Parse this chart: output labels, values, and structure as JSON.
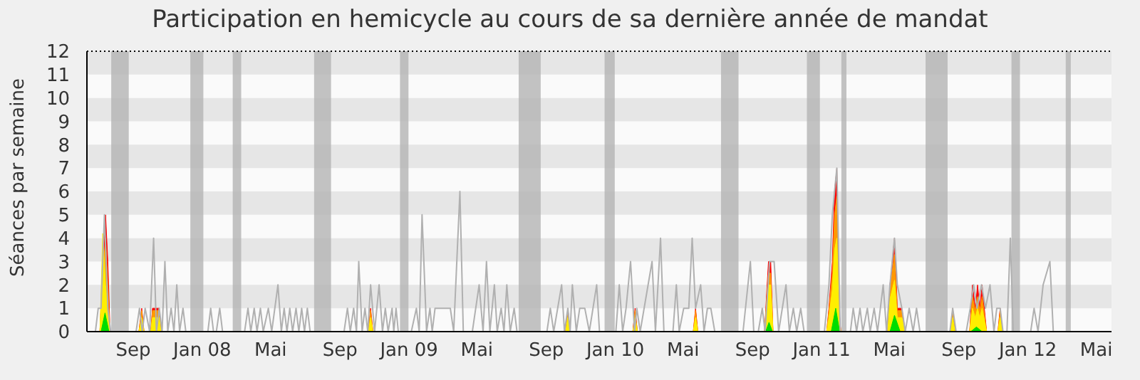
{
  "chart_data": {
    "type": "area",
    "title": "Participation en hemicycle au cours de sa dernière année de mandat",
    "ylabel": "Séances par semaine",
    "xlim": [
      "2007-06-11",
      "2012-05-28"
    ],
    "xticks": [
      {
        "value": "2007-09-01",
        "label": "Sep"
      },
      {
        "value": "2008-01-01",
        "label": "Jan 08"
      },
      {
        "value": "2008-05-01",
        "label": "Mai"
      },
      {
        "value": "2008-09-01",
        "label": "Sep"
      },
      {
        "value": "2009-01-01",
        "label": "Jan 09"
      },
      {
        "value": "2009-05-01",
        "label": "Mai"
      },
      {
        "value": "2009-09-01",
        "label": "Sep"
      },
      {
        "value": "2010-01-01",
        "label": "Jan 10"
      },
      {
        "value": "2010-05-01",
        "label": "Mai"
      },
      {
        "value": "2010-09-01",
        "label": "Sep"
      },
      {
        "value": "2011-01-01",
        "label": "Jan 11"
      },
      {
        "value": "2011-05-01",
        "label": "Mai"
      },
      {
        "value": "2011-09-01",
        "label": "Sep"
      },
      {
        "value": "2012-01-01",
        "label": "Jan 12"
      },
      {
        "value": "2012-05-01",
        "label": "Mai"
      }
    ],
    "ylim": [
      0,
      12
    ],
    "yticks": [
      0,
      1,
      2,
      3,
      4,
      5,
      6,
      7,
      8,
      9,
      10,
      11,
      12
    ],
    "legend": false,
    "bands": [
      {
        "axis": "y",
        "from": 1,
        "to": 2,
        "color": "#e6e6e6"
      },
      {
        "axis": "y",
        "from": 3,
        "to": 4,
        "color": "#e6e6e6"
      },
      {
        "axis": "y",
        "from": 5,
        "to": 6,
        "color": "#e6e6e6"
      },
      {
        "axis": "y",
        "from": 7,
        "to": 8,
        "color": "#e6e6e6"
      },
      {
        "axis": "y",
        "from": 9,
        "to": 10,
        "color": "#e6e6e6"
      },
      {
        "axis": "y",
        "from": 11,
        "to": 12,
        "color": "#e6e6e6"
      },
      {
        "axis": "x",
        "from": "2007-07-24",
        "to": "2007-08-24",
        "color": "#b4b4b4"
      },
      {
        "axis": "x",
        "from": "2007-12-11",
        "to": "2008-01-03",
        "color": "#b4b4b4"
      },
      {
        "axis": "x",
        "from": "2008-02-24",
        "to": "2008-03-10",
        "color": "#b4b4b4"
      },
      {
        "axis": "x",
        "from": "2008-07-17",
        "to": "2008-08-16",
        "color": "#b4b4b4"
      },
      {
        "axis": "x",
        "from": "2008-12-16",
        "to": "2008-12-31",
        "color": "#b4b4b4"
      },
      {
        "axis": "x",
        "from": "2009-07-14",
        "to": "2009-08-22",
        "color": "#b4b4b4"
      },
      {
        "axis": "x",
        "from": "2009-12-13",
        "to": "2009-12-31",
        "color": "#b4b4b4"
      },
      {
        "axis": "x",
        "from": "2010-07-07",
        "to": "2010-08-07",
        "color": "#b4b4b4"
      },
      {
        "axis": "x",
        "from": "2010-12-06",
        "to": "2010-12-29",
        "color": "#b4b4b4"
      },
      {
        "axis": "x",
        "from": "2011-02-05",
        "to": "2011-02-14",
        "color": "#b4b4b4"
      },
      {
        "axis": "x",
        "from": "2011-07-04",
        "to": "2011-08-12",
        "color": "#b4b4b4"
      },
      {
        "axis": "x",
        "from": "2011-12-03",
        "to": "2011-12-18",
        "color": "#b4b4b4"
      },
      {
        "axis": "x",
        "from": "2012-03-08",
        "to": "2012-03-17",
        "color": "#b4b4b4"
      }
    ],
    "series": [
      {
        "type": "line",
        "color": "#b0b0b0",
        "x": [
          "2007-06-26",
          "2007-07-01",
          "2007-07-06",
          "2007-07-12",
          "2007-07-18",
          "2007-07-23",
          "2007-09-06",
          "2007-09-12",
          "2007-09-17",
          "2007-09-22",
          "2007-09-30",
          "2007-10-07",
          "2007-10-12",
          "2007-10-17",
          "2007-10-22",
          "2007-10-27",
          "2007-11-01",
          "2007-11-07",
          "2007-11-12",
          "2007-11-17",
          "2007-11-22",
          "2007-11-28",
          "2007-12-03",
          "2008-01-11",
          "2008-01-16",
          "2008-01-21",
          "2008-01-26",
          "2008-02-01",
          "2008-02-06",
          "2008-03-16",
          "2008-03-22",
          "2008-03-27",
          "2008-04-02",
          "2008-04-07",
          "2008-04-13",
          "2008-04-18",
          "2008-04-27",
          "2008-05-03",
          "2008-05-14",
          "2008-05-20",
          "2008-05-25",
          "2008-05-30",
          "2008-06-04",
          "2008-06-09",
          "2008-06-15",
          "2008-06-20",
          "2008-06-25",
          "2008-06-30",
          "2008-07-05",
          "2008-07-10",
          "2008-09-08",
          "2008-09-14",
          "2008-09-19",
          "2008-09-25",
          "2008-09-30",
          "2008-10-04",
          "2008-10-10",
          "2008-10-15",
          "2008-10-20",
          "2008-10-25",
          "2008-11-01",
          "2008-11-09",
          "2008-11-15",
          "2008-11-20",
          "2008-11-25",
          "2008-12-02",
          "2008-12-05",
          "2008-12-09",
          "2008-12-13",
          "2009-01-05",
          "2009-01-14",
          "2009-01-19",
          "2009-01-24",
          "2009-02-01",
          "2009-02-07",
          "2009-02-11",
          "2009-02-16",
          "2009-02-27",
          "2009-03-07",
          "2009-03-15",
          "2009-03-21",
          "2009-04-01",
          "2009-04-07",
          "2009-04-23",
          "2009-05-05",
          "2009-05-12",
          "2009-05-18",
          "2009-05-24",
          "2009-06-01",
          "2009-06-06",
          "2009-06-13",
          "2009-06-18",
          "2009-06-23",
          "2009-06-29",
          "2009-07-06",
          "2009-07-11",
          "2009-09-02",
          "2009-09-08",
          "2009-09-14",
          "2009-09-28",
          "2009-10-03",
          "2009-10-09",
          "2009-10-13",
          "2009-10-17",
          "2009-10-24",
          "2009-10-30",
          "2009-11-08",
          "2009-11-16",
          "2009-11-29",
          "2009-12-04",
          "2010-01-02",
          "2010-01-08",
          "2010-01-14",
          "2010-01-20",
          "2010-01-28",
          "2010-02-04",
          "2010-02-08",
          "2010-02-14",
          "2010-03-07",
          "2010-03-13",
          "2010-03-22",
          "2010-03-28",
          "2010-04-13",
          "2010-04-19",
          "2010-04-24",
          "2010-05-02",
          "2010-05-11",
          "2010-05-17",
          "2010-05-23",
          "2010-06-01",
          "2010-06-07",
          "2010-06-13",
          "2010-06-19",
          "2010-06-26",
          "2010-08-15",
          "2010-08-28",
          "2010-09-03",
          "2010-09-11",
          "2010-09-18",
          "2010-09-23",
          "2010-10-01",
          "2010-10-09",
          "2010-10-17",
          "2010-10-30",
          "2010-11-05",
          "2010-11-12",
          "2010-11-18",
          "2010-11-25",
          "2010-12-01",
          "2011-01-06",
          "2011-01-14",
          "2011-01-20",
          "2011-01-28",
          "2011-02-03",
          "2011-02-21",
          "2011-02-26",
          "2011-03-04",
          "2011-03-10",
          "2011-03-15",
          "2011-03-23",
          "2011-03-28",
          "2011-04-04",
          "2011-04-10",
          "2011-04-20",
          "2011-04-26",
          "2011-05-02",
          "2011-05-10",
          "2011-05-15",
          "2011-05-23",
          "2011-05-29",
          "2011-06-05",
          "2011-06-12",
          "2011-06-18",
          "2011-06-24",
          "2011-08-16",
          "2011-08-21",
          "2011-08-27",
          "2011-09-14",
          "2011-09-21",
          "2011-09-27",
          "2011-10-03",
          "2011-10-11",
          "2011-10-18",
          "2011-10-26",
          "2011-11-02",
          "2011-11-07",
          "2011-11-13",
          "2011-11-18",
          "2011-11-25",
          "2011-12-01",
          "2011-12-06",
          "2012-01-06",
          "2012-01-12",
          "2012-01-19",
          "2012-01-28",
          "2012-02-09",
          "2012-02-15"
        ],
        "values": [
          0,
          1,
          1,
          5,
          1,
          0,
          0,
          1,
          0,
          1,
          0,
          4,
          0,
          1,
          0,
          3,
          0,
          1,
          0,
          2,
          0,
          1,
          0,
          0,
          1,
          0,
          0,
          1,
          0,
          0,
          1,
          0,
          1,
          0,
          1,
          0,
          1,
          0,
          2,
          0,
          1,
          0,
          1,
          0,
          1,
          0,
          1,
          0,
          1,
          0,
          0,
          1,
          0,
          1,
          0,
          3,
          0,
          1,
          0,
          2,
          0,
          2,
          0,
          1,
          0,
          1,
          0,
          1,
          0,
          0,
          1,
          0,
          5,
          0,
          1,
          0,
          1,
          1,
          1,
          1,
          0,
          6,
          0,
          0,
          2,
          0,
          3,
          0,
          2,
          0,
          1,
          0,
          2,
          0,
          1,
          0,
          0,
          1,
          0,
          2,
          0,
          1,
          0,
          2,
          0,
          1,
          1,
          0,
          2,
          0,
          0,
          2,
          0,
          1,
          3,
          0,
          1,
          0,
          3,
          0,
          4,
          0,
          0,
          2,
          0,
          1,
          1,
          4,
          1,
          2,
          0,
          1,
          1,
          0,
          0,
          3,
          0,
          0,
          1,
          0,
          3,
          3,
          0,
          2,
          0,
          1,
          0,
          1,
          0,
          0,
          2,
          5,
          7,
          0,
          0,
          1,
          0,
          1,
          0,
          1,
          0,
          1,
          0,
          2,
          0,
          2,
          4,
          2,
          1,
          0,
          1,
          0,
          1,
          0,
          0,
          1,
          0,
          0,
          1,
          2,
          1,
          2,
          1,
          2,
          0,
          1,
          1,
          0,
          0,
          4,
          0,
          0,
          1,
          0,
          2,
          3,
          0
        ]
      },
      {
        "type": "area",
        "color": "#ff0000",
        "x": [
          "2007-07-04",
          "2007-07-09",
          "2007-07-14",
          "2007-07-18",
          "2007-07-22",
          "2007-09-11",
          "2007-09-16",
          "2007-09-20",
          "2007-10-02",
          "2007-10-05",
          "2007-10-17",
          "2007-10-20",
          "2008-10-21",
          "2008-10-25",
          "2008-10-29",
          "2009-10-05",
          "2009-10-09",
          "2009-10-13",
          "2010-02-01",
          "2010-02-05",
          "2010-02-09",
          "2010-05-19",
          "2010-05-23",
          "2010-05-27",
          "2010-09-22",
          "2010-09-29",
          "2010-10-03",
          "2010-10-07",
          "2011-01-10",
          "2011-01-14",
          "2011-01-20",
          "2011-01-24",
          "2011-01-28",
          "2011-02-01",
          "2011-02-04",
          "2011-04-28",
          "2011-05-02",
          "2011-05-10",
          "2011-05-15",
          "2011-05-23",
          "2011-05-29",
          "2011-08-17",
          "2011-08-21",
          "2011-08-25",
          "2011-09-20",
          "2011-09-25",
          "2011-09-30",
          "2011-10-04",
          "2011-10-08",
          "2011-10-12",
          "2011-10-20",
          "2011-11-09",
          "2011-11-13",
          "2011-11-17"
        ],
        "values": [
          0,
          3,
          5,
          3,
          0,
          0,
          1,
          0,
          0,
          1,
          1,
          0,
          0,
          1,
          0,
          0,
          1,
          0,
          0,
          1,
          0,
          0,
          1,
          0,
          0,
          3,
          3,
          0,
          0,
          1,
          3,
          6,
          7,
          1,
          0,
          0,
          2,
          4,
          1,
          1,
          0,
          0,
          1,
          0,
          0,
          2,
          1,
          2,
          1,
          2,
          0,
          0,
          1,
          0
        ]
      },
      {
        "type": "area",
        "color": "#ff9900",
        "x": [
          "2007-07-04",
          "2007-07-09",
          "2007-07-14",
          "2007-07-18",
          "2007-07-22",
          "2007-09-11",
          "2007-09-16",
          "2007-09-20",
          "2007-10-02",
          "2007-10-05",
          "2007-10-17",
          "2007-10-20",
          "2008-10-21",
          "2008-10-25",
          "2008-10-29",
          "2009-10-05",
          "2009-10-09",
          "2009-10-13",
          "2010-02-01",
          "2010-02-05",
          "2010-02-09",
          "2010-05-19",
          "2010-05-23",
          "2010-05-27",
          "2010-09-22",
          "2010-09-29",
          "2010-10-03",
          "2010-10-07",
          "2011-01-10",
          "2011-01-14",
          "2011-01-20",
          "2011-01-24",
          "2011-01-28",
          "2011-02-01",
          "2011-02-04",
          "2011-04-28",
          "2011-05-02",
          "2011-05-10",
          "2011-05-15",
          "2011-05-23",
          "2011-05-29",
          "2011-08-17",
          "2011-08-21",
          "2011-08-25",
          "2011-09-20",
          "2011-09-25",
          "2011-09-30",
          "2011-10-04",
          "2011-10-08",
          "2011-10-12",
          "2011-10-20",
          "2011-11-09",
          "2011-11-13",
          "2011-11-17"
        ],
        "values": [
          0,
          2.5,
          4,
          2,
          0,
          0,
          0.9,
          0,
          0,
          0.9,
          0.9,
          0,
          0,
          0.9,
          0,
          0,
          0.9,
          0,
          0,
          0.9,
          0,
          0,
          0.9,
          0,
          0,
          2.5,
          2.5,
          0,
          0,
          0.9,
          2.5,
          5,
          5.8,
          0.9,
          0,
          0,
          1.8,
          3.3,
          0.9,
          0.9,
          0,
          0,
          0.9,
          0,
          0,
          1.5,
          0.9,
          1.5,
          0.9,
          1.5,
          0,
          0,
          0.9,
          0
        ]
      },
      {
        "type": "area",
        "color": "#ffee00",
        "x": [
          "2007-07-04",
          "2007-07-09",
          "2007-07-14",
          "2007-07-18",
          "2007-07-22",
          "2007-09-11",
          "2007-09-16",
          "2007-09-20",
          "2007-10-02",
          "2007-10-05",
          "2007-10-17",
          "2007-10-20",
          "2008-10-21",
          "2008-10-25",
          "2008-10-29",
          "2009-10-05",
          "2009-10-09",
          "2009-10-13",
          "2010-02-01",
          "2010-02-05",
          "2010-02-09",
          "2010-05-19",
          "2010-05-23",
          "2010-05-27",
          "2010-09-22",
          "2010-09-29",
          "2010-10-03",
          "2010-10-07",
          "2011-01-10",
          "2011-01-14",
          "2011-01-20",
          "2011-01-24",
          "2011-01-28",
          "2011-02-01",
          "2011-02-04",
          "2011-04-28",
          "2011-05-02",
          "2011-05-10",
          "2011-05-15",
          "2011-05-23",
          "2011-05-29",
          "2011-08-17",
          "2011-08-21",
          "2011-08-25",
          "2011-09-20",
          "2011-09-25",
          "2011-09-30",
          "2011-10-04",
          "2011-10-08",
          "2011-10-12",
          "2011-10-20",
          "2011-11-09",
          "2011-11-13",
          "2011-11-17"
        ],
        "values": [
          0,
          4.2,
          2,
          1,
          0,
          0,
          0.6,
          0,
          0,
          0.6,
          0.6,
          0,
          0,
          0.6,
          0,
          0,
          0.6,
          0,
          0,
          0.6,
          0,
          0,
          0.6,
          0,
          0,
          2,
          2,
          0,
          0,
          0.6,
          1.8,
          3.5,
          4,
          0.6,
          0,
          0,
          1.4,
          2.2,
          0.6,
          0.6,
          0,
          0,
          0.6,
          0,
          0,
          1,
          0.6,
          1,
          0.6,
          1,
          0,
          0,
          0.6,
          0
        ]
      },
      {
        "type": "area",
        "color": "#00dd00",
        "x": [
          "2007-07-06",
          "2007-07-13",
          "2007-07-20",
          "2010-09-24",
          "2010-09-30",
          "2010-10-06",
          "2011-01-18",
          "2011-01-26",
          "2011-02-02",
          "2011-05-02",
          "2011-05-10",
          "2011-05-20",
          "2011-09-22",
          "2011-10-02",
          "2011-10-12"
        ],
        "values": [
          0,
          0.8,
          0,
          0,
          0.4,
          0,
          0,
          1,
          0,
          0,
          0.7,
          0,
          0,
          0.2,
          0
        ]
      }
    ]
  }
}
